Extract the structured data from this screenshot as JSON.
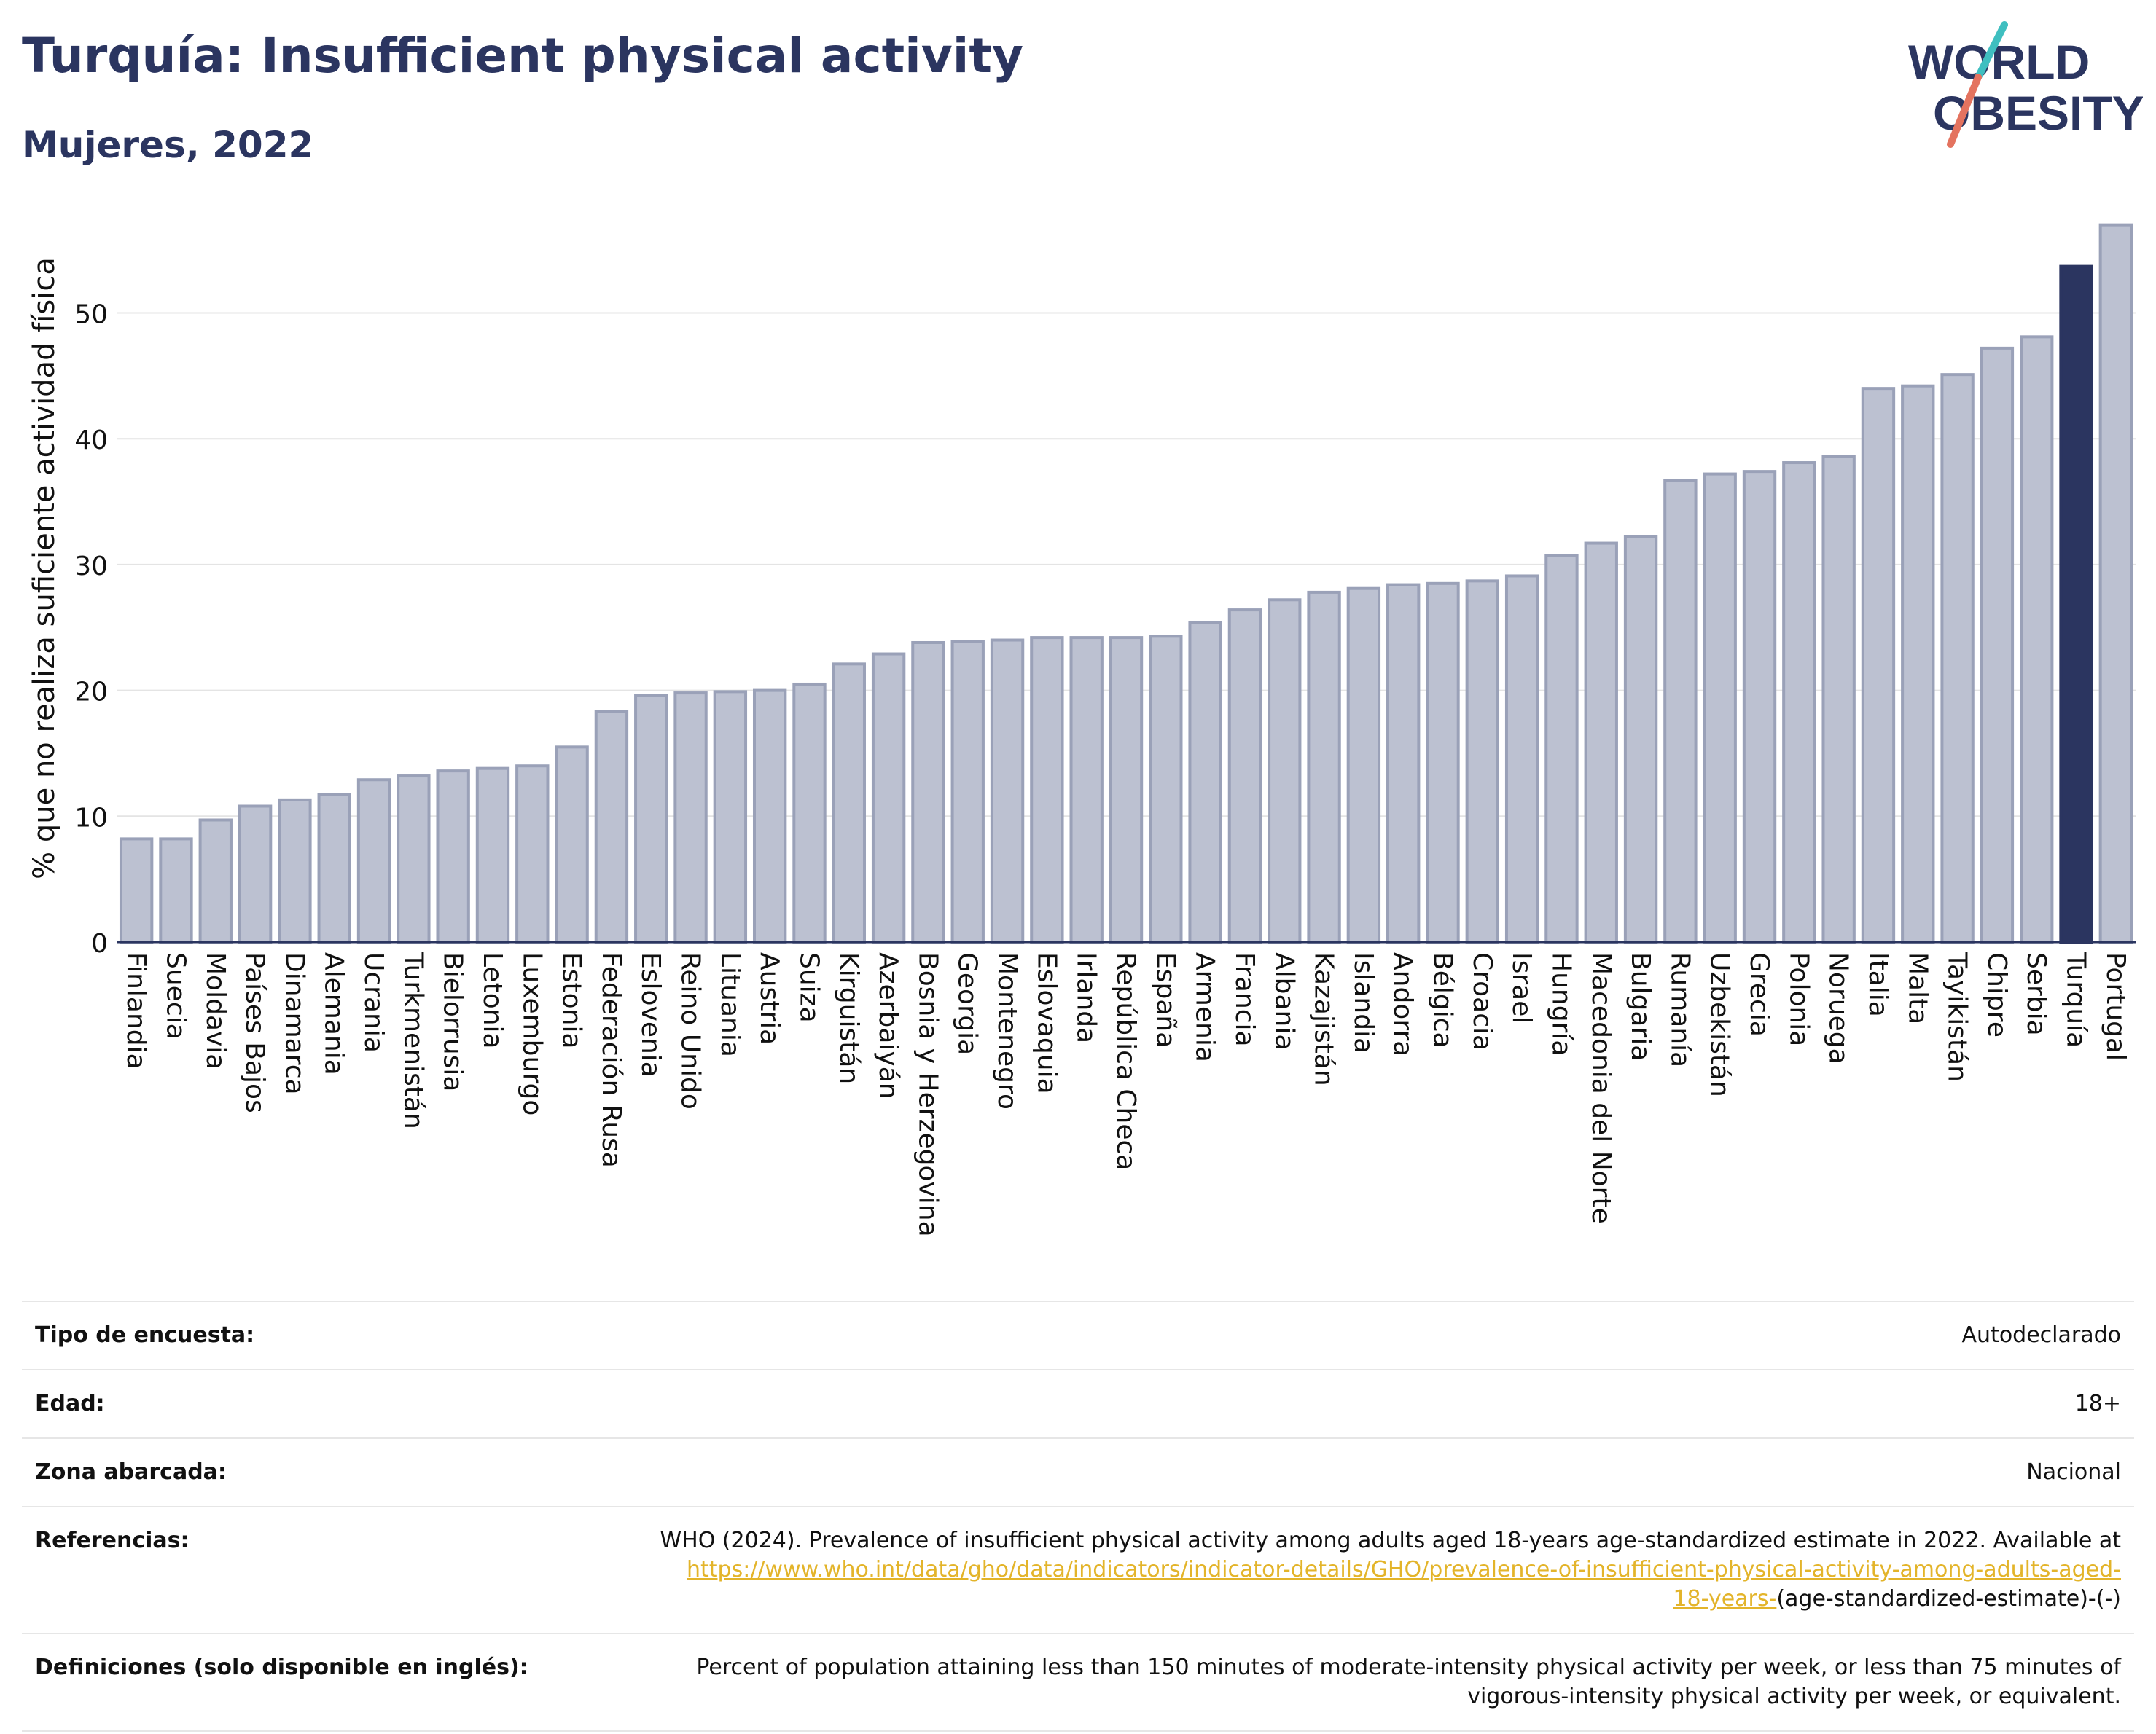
{
  "header": {
    "title": "Turquía: Insufficient physical activity",
    "subtitle": "Mujeres, 2022"
  },
  "logo": {
    "line1": "WORLD",
    "line2": "OBESITY"
  },
  "colors": {
    "bar": "#bcc1d1",
    "bar_border": "#9aa1b8",
    "highlight": "#2b3560",
    "grid": "#e4e4e4",
    "text": "#2b3560",
    "link": "#e3b42a",
    "logo_teal": "#3fbfc0",
    "logo_coral": "#e4735f"
  },
  "chart_data": {
    "type": "bar",
    "ylabel": "% que no realiza suficiente actividad física",
    "ylim": [
      0,
      57.5
    ],
    "yticks": [
      0,
      10,
      20,
      30,
      40,
      50
    ],
    "grid": true,
    "highlight": "Turquía",
    "categories": [
      "Finlandia",
      "Suecia",
      "Moldavia",
      "Países Bajos",
      "Dinamarca",
      "Alemania",
      "Ucrania",
      "Turkmenistán",
      "Bielorrusia",
      "Letonia",
      "Luxemburgo",
      "Estonia",
      "Federación Rusa",
      "Eslovenia",
      "Reino Unido",
      "Lituania",
      "Austria",
      "Suiza",
      "Kirguistán",
      "Azerbaiyán",
      "Bosnia y Herzegovina",
      "Georgia",
      "Montenegro",
      "Eslovaquia",
      "Irlanda",
      "República Checa",
      "España",
      "Armenia",
      "Francia",
      "Albania",
      "Kazajistán",
      "Islandia",
      "Andorra",
      "Bélgica",
      "Croacia",
      "Israel",
      "Hungría",
      "Macedonia del Norte",
      "Bulgaria",
      "Rumanía",
      "Uzbekistán",
      "Grecia",
      "Polonia",
      "Noruega",
      "Italia",
      "Malta",
      "Tayikistán",
      "Chipre",
      "Serbia",
      "Turquía",
      "Portugal"
    ],
    "values": [
      8.2,
      8.2,
      9.7,
      10.8,
      11.3,
      11.7,
      12.9,
      13.2,
      13.6,
      13.8,
      14.0,
      15.5,
      18.3,
      19.6,
      19.8,
      19.9,
      20.0,
      20.5,
      22.1,
      22.9,
      23.8,
      23.9,
      24.0,
      24.2,
      24.2,
      24.2,
      24.3,
      25.4,
      26.4,
      27.2,
      27.8,
      28.1,
      28.4,
      28.5,
      28.7,
      29.1,
      30.7,
      31.7,
      32.2,
      36.7,
      37.2,
      37.4,
      38.1,
      38.6,
      44.0,
      44.2,
      45.1,
      47.2,
      48.1,
      53.7,
      57.0
    ]
  },
  "info": {
    "rows": [
      {
        "label": "Tipo de encuesta:",
        "value": "Autodeclarado"
      },
      {
        "label": "Edad:",
        "value": "18+"
      },
      {
        "label": "Zona abarcada:",
        "value": "Nacional"
      }
    ],
    "references": {
      "label": "Referencias:",
      "text_before": "WHO (2024). Prevalence of insufficient physical activity among adults aged 18-years age-standardized estimate in 2022. Available at",
      "link_line1": "https://www.who.int/data/gho/data/indicators/indicator-details/GHO/prevalence-of-insufficient-physical-activity-among-adults-aged-",
      "link_line2": "18-years-",
      "text_after": "(age-standardized-estimate)-(-)"
    },
    "definitions": {
      "label": "Definiciones (solo disponible en inglés):",
      "value": "Percent of population attaining less than 150 minutes of moderate-intensity physical activity per week, or less than 75 minutes of vigorous-intensity physical activity per week, or equivalent."
    }
  }
}
